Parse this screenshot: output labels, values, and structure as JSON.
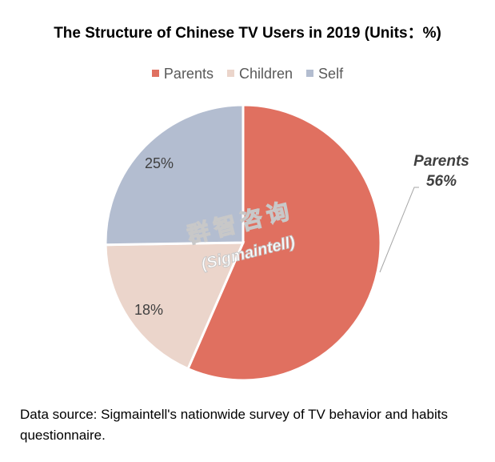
{
  "colors": {
    "parents": "#e07060",
    "children": "#ebd5cb",
    "self": "#b3bdd0",
    "label": "#404040",
    "leader": "#a6a6a6",
    "watermark": "#c8c8c8"
  },
  "chart_data": {
    "type": "pie",
    "title": "The Structure of Chinese TV Users in 2019 (Units：%)",
    "legend_position": "top",
    "slices": [
      {
        "name": "Parents",
        "value": 56,
        "label": "56%",
        "callout_name": "Parents"
      },
      {
        "name": "Children",
        "value": 18,
        "label": "18%"
      },
      {
        "name": "Self",
        "value": 25,
        "label": "25%"
      }
    ]
  },
  "watermark": {
    "line1": "群智咨询",
    "line2": "(Sigmaintell)"
  },
  "source": "Data source: Sigmaintell's nationwide survey of TV behavior and habits questionnaire."
}
